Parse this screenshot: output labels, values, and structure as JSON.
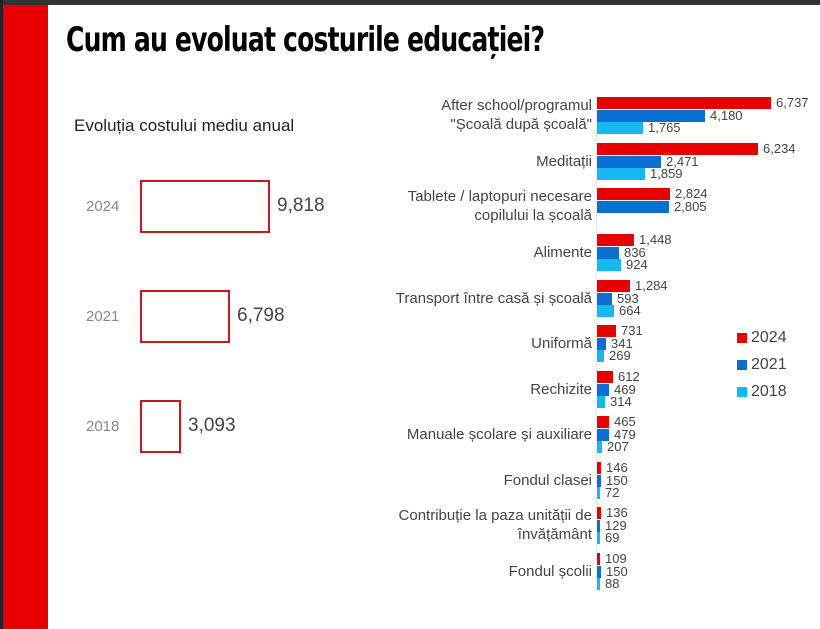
{
  "page": {
    "title": "Cum au evoluat costurile educației?",
    "left_panel": {
      "subtitle": "Evoluția costului mediu anual",
      "rows": [
        {
          "year": "2024",
          "value": "9,818"
        },
        {
          "year": "2021",
          "value": "6,798"
        },
        {
          "year": "2018",
          "value": "3,093"
        }
      ]
    },
    "legend": [
      {
        "label": "2024",
        "color": "#e60000"
      },
      {
        "label": "2021",
        "color": "#0a6fd0"
      },
      {
        "label": "2018",
        "color": "#15b8f0"
      }
    ],
    "categories": [
      {
        "label": "After school/programul\n\"Școală după școală\"",
        "v2024": "6,737",
        "v2021": "4,180",
        "v2018": "1,765"
      },
      {
        "label": "Meditații",
        "v2024": "6,234",
        "v2021": "2,471",
        "v2018": "1,859"
      },
      {
        "label": "Tablete / laptopuri necesare\ncopilului la școală",
        "v2024": "2,824",
        "v2021": "2,805",
        "v2018": ""
      },
      {
        "label": "Alimente",
        "v2024": "1,448",
        "v2021": "836",
        "v2018": "924"
      },
      {
        "label": "Transport între casă și școală",
        "v2024": "1,284",
        "v2021": "593",
        "v2018": "664"
      },
      {
        "label": "Uniformă",
        "v2024": "731",
        "v2021": "341",
        "v2018": "269"
      },
      {
        "label": "Rechizite",
        "v2024": "612",
        "v2021": "469",
        "v2018": "314"
      },
      {
        "label": "Manuale școlare și auxiliare",
        "v2024": "465",
        "v2021": "479",
        "v2018": "207"
      },
      {
        "label": "Fondul clasei",
        "v2024": "146",
        "v2021": "150",
        "v2018": "72"
      },
      {
        "label": "Contribuție la paza unității de\nînvățământ",
        "v2024": "136",
        "v2021": "129",
        "v2018": "69"
      },
      {
        "label": "Fondul școlii",
        "v2024": "109",
        "v2021": "150",
        "v2018": "88"
      }
    ]
  },
  "chart_data": [
    {
      "type": "bar",
      "title": "Evoluția costului mediu anual",
      "categories": [
        "2024",
        "2021",
        "2018"
      ],
      "values": [
        9818,
        6798,
        3093
      ],
      "orientation": "horizontal",
      "xlabel": "",
      "ylabel": ""
    },
    {
      "type": "bar",
      "title": "Cum au evoluat costurile educației?",
      "orientation": "horizontal",
      "categories": [
        "After school/programul \"Școală după școală\"",
        "Meditații",
        "Tablete / laptopuri necesare copilului la școală",
        "Alimente",
        "Transport între casă și școală",
        "Uniformă",
        "Rechizite",
        "Manuale școlare și auxiliare",
        "Fondul clasei",
        "Contribuție la paza unității de învățământ",
        "Fondul școlii"
      ],
      "series": [
        {
          "name": "2024",
          "color": "#e60000",
          "values": [
            6737,
            6234,
            2824,
            1448,
            1284,
            731,
            612,
            465,
            146,
            136,
            109
          ]
        },
        {
          "name": "2021",
          "color": "#0a6fd0",
          "values": [
            4180,
            2471,
            2805,
            836,
            593,
            341,
            469,
            479,
            150,
            129,
            150
          ]
        },
        {
          "name": "2018",
          "color": "#15b8f0",
          "values": [
            1765,
            1859,
            null,
            924,
            664,
            269,
            314,
            207,
            72,
            69,
            88
          ]
        }
      ],
      "legend_position": "right",
      "grid": false
    }
  ]
}
